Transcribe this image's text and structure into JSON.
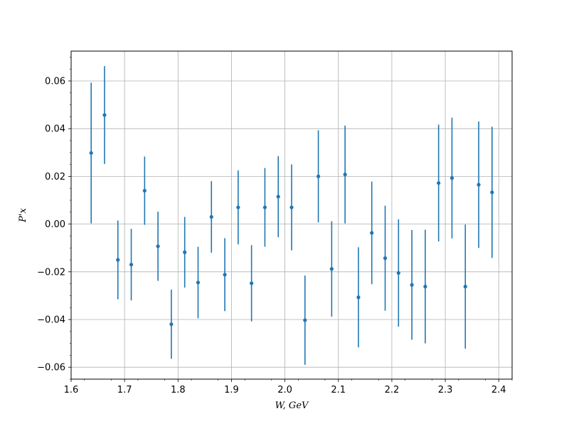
{
  "chart_data": {
    "type": "scatter",
    "xlabel": "W, GeV",
    "ylabel": "P'x",
    "xlim": [
      1.6,
      2.425
    ],
    "ylim": [
      -0.065,
      0.0725
    ],
    "grid": true,
    "marker_color": "#1f77b4",
    "x_ticks": [
      "1.6",
      "1.7",
      "1.8",
      "1.9",
      "2.0",
      "2.1",
      "2.2",
      "2.3",
      "2.4"
    ],
    "y_ticks": [
      "−0.06",
      "−0.04",
      "−0.02",
      "0.00",
      "0.02",
      "0.04",
      "0.06"
    ],
    "points": [
      {
        "x": 1.6375,
        "y": 0.0298,
        "err": 0.0295
      },
      {
        "x": 1.6625,
        "y": 0.0457,
        "err": 0.0205
      },
      {
        "x": 1.6875,
        "y": -0.015,
        "err": 0.0165
      },
      {
        "x": 1.7125,
        "y": -0.017,
        "err": 0.015
      },
      {
        "x": 1.7375,
        "y": 0.014,
        "err": 0.0143
      },
      {
        "x": 1.7625,
        "y": -0.0093,
        "err": 0.0145
      },
      {
        "x": 1.7875,
        "y": -0.042,
        "err": 0.0145
      },
      {
        "x": 1.8125,
        "y": -0.0118,
        "err": 0.0148
      },
      {
        "x": 1.8375,
        "y": -0.0245,
        "err": 0.015
      },
      {
        "x": 1.8625,
        "y": 0.003,
        "err": 0.015
      },
      {
        "x": 1.8875,
        "y": -0.0212,
        "err": 0.0153
      },
      {
        "x": 1.9125,
        "y": 0.007,
        "err": 0.0155
      },
      {
        "x": 1.9375,
        "y": -0.0248,
        "err": 0.016
      },
      {
        "x": 1.9625,
        "y": 0.007,
        "err": 0.0165
      },
      {
        "x": 1.9875,
        "y": 0.0115,
        "err": 0.017
      },
      {
        "x": 2.0125,
        "y": 0.007,
        "err": 0.018
      },
      {
        "x": 2.0375,
        "y": -0.0403,
        "err": 0.0187
      },
      {
        "x": 2.0625,
        "y": 0.02,
        "err": 0.0193
      },
      {
        "x": 2.0875,
        "y": -0.0188,
        "err": 0.02
      },
      {
        "x": 2.1125,
        "y": 0.0208,
        "err": 0.0205
      },
      {
        "x": 2.1375,
        "y": -0.0307,
        "err": 0.021
      },
      {
        "x": 2.1625,
        "y": -0.0037,
        "err": 0.0215
      },
      {
        "x": 2.1875,
        "y": -0.0143,
        "err": 0.022
      },
      {
        "x": 2.2125,
        "y": -0.0205,
        "err": 0.0225
      },
      {
        "x": 2.2375,
        "y": -0.0255,
        "err": 0.023
      },
      {
        "x": 2.2625,
        "y": -0.0262,
        "err": 0.0238
      },
      {
        "x": 2.2875,
        "y": 0.0172,
        "err": 0.0245
      },
      {
        "x": 2.3125,
        "y": 0.0193,
        "err": 0.0253
      },
      {
        "x": 2.3375,
        "y": -0.0262,
        "err": 0.026
      },
      {
        "x": 2.3625,
        "y": 0.0165,
        "err": 0.0265
      },
      {
        "x": 2.3875,
        "y": 0.0133,
        "err": 0.0275
      }
    ]
  }
}
